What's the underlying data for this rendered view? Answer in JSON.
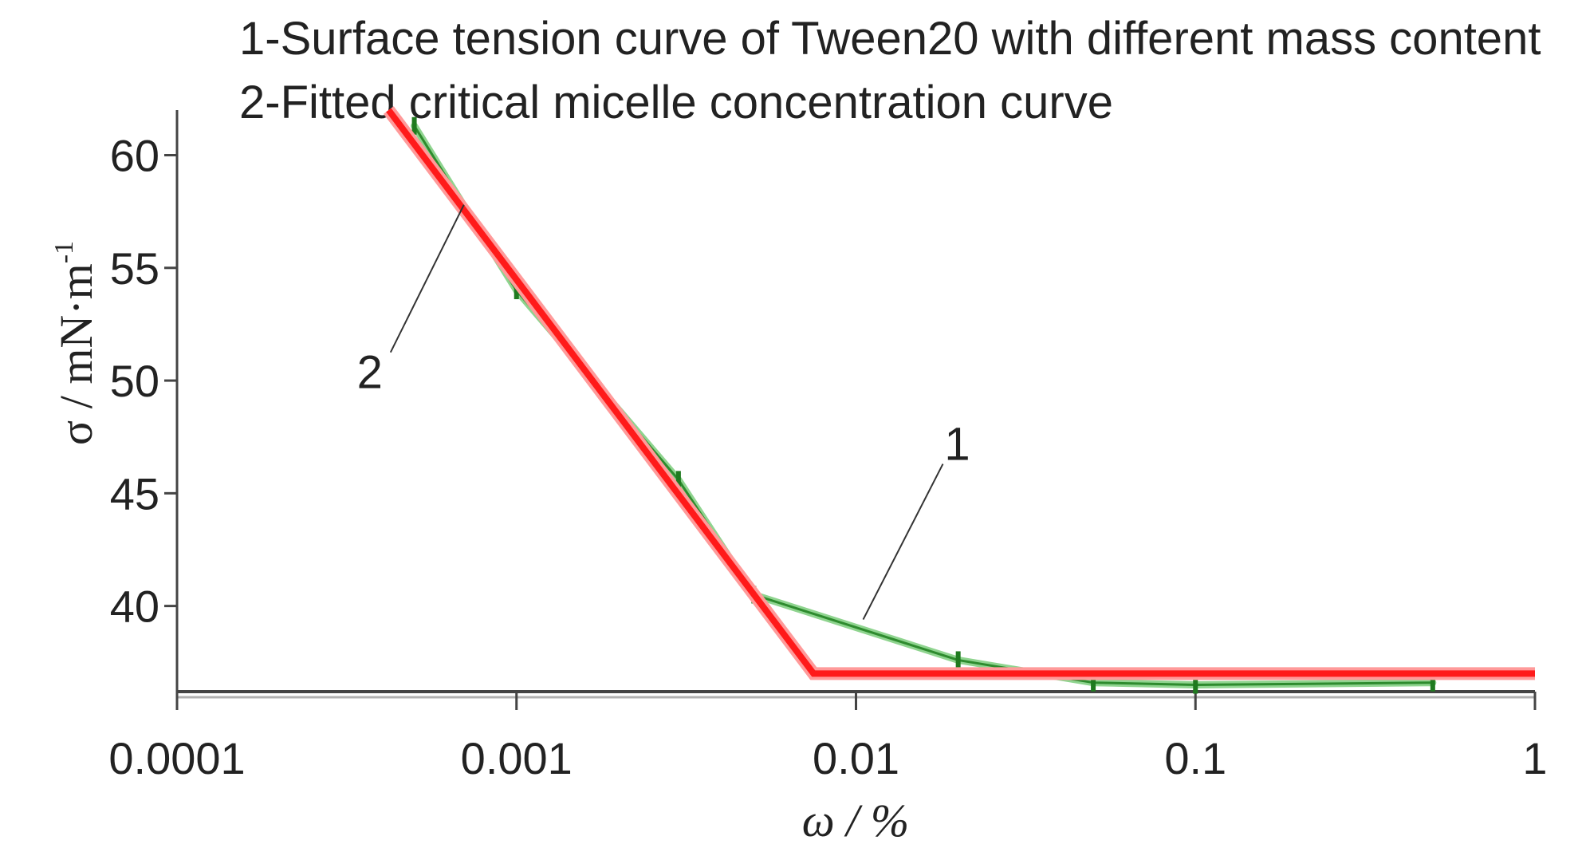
{
  "chart_data": {
    "type": "line",
    "title": "",
    "legend": [
      "1-Surface tension curve of Tween20 with different mass content",
      "2-Fitted critical micelle concentration curve"
    ],
    "xlabel": "ω / %",
    "ylabel_main": "σ / mN·m",
    "ylabel_sup": "-1",
    "x_scale": "log",
    "xlim": [
      0.0001,
      1
    ],
    "ylim": [
      36.2,
      62
    ],
    "x_ticks": [
      0.0001,
      0.001,
      0.01,
      0.1,
      1
    ],
    "x_tick_labels": [
      "0.0001",
      "0.001",
      "0.01",
      "0.1",
      "1"
    ],
    "y_ticks": [
      40,
      45,
      50,
      55,
      60
    ],
    "y_tick_labels": [
      "40",
      "45",
      "50",
      "55",
      "60"
    ],
    "grid": false,
    "legend_placement": "top",
    "series": [
      {
        "label": "1",
        "color": "#2e8b2e",
        "marker": "vertical-tick",
        "x": [
          0.0005,
          0.001,
          0.003,
          0.005,
          0.02,
          0.05,
          0.1,
          0.5
        ],
        "y": [
          61.3,
          54.0,
          45.6,
          40.5,
          37.6,
          36.6,
          36.5,
          36.6
        ]
      },
      {
        "label": "2",
        "color": "#ff1a1a",
        "x": [
          0.00042,
          0.0075,
          1
        ],
        "y": [
          62,
          37.0,
          37.0
        ]
      }
    ],
    "callouts": [
      {
        "text": "1",
        "x": 0.0105,
        "y": 39.4
      },
      {
        "text": "2",
        "x": 0.0007,
        "y": 57.8
      }
    ]
  }
}
